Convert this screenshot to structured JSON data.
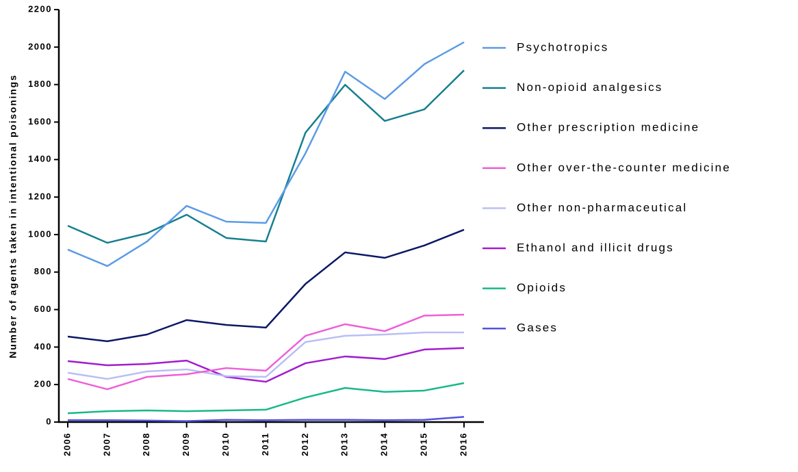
{
  "chart_data": {
    "type": "line",
    "y_label": "Number of agents taken in intentional poisonings",
    "categories": [
      "2006",
      "2007",
      "2008",
      "2009",
      "2010",
      "2011",
      "2012",
      "2013",
      "2014",
      "2015",
      "2016"
    ],
    "series": [
      {
        "name": "Psychotropics",
        "color": "#5b9be6",
        "values": [
          920,
          832,
          963,
          1153,
          1069,
          1062,
          1434,
          1869,
          1723,
          1909,
          2026
        ]
      },
      {
        "name": "Non-opioid analgesics",
        "color": "#167f8f",
        "values": [
          1047,
          956,
          1007,
          1106,
          982,
          963,
          1544,
          1799,
          1606,
          1668,
          1876
        ]
      },
      {
        "name": "Other prescription medicine",
        "color": "#0c1866",
        "values": [
          456,
          431,
          467,
          544,
          518,
          504,
          737,
          905,
          876,
          942,
          1026
        ]
      },
      {
        "name": "Other over-the-counter medicine",
        "color": "#ee5fd8",
        "values": [
          230,
          175,
          241,
          255,
          288,
          274,
          460,
          522,
          485,
          568,
          573
        ]
      },
      {
        "name": "Other non-pharmaceutical",
        "color": "#b9bff2",
        "values": [
          263,
          230,
          270,
          281,
          245,
          241,
          427,
          460,
          467,
          478,
          478
        ]
      },
      {
        "name": "Ethanol and illicit drugs",
        "color": "#a21cd0",
        "values": [
          325,
          303,
          310,
          328,
          241,
          215,
          314,
          350,
          336,
          387,
          395
        ]
      },
      {
        "name": "Opioids",
        "color": "#17b888",
        "values": [
          47,
          58,
          62,
          58,
          62,
          66,
          131,
          182,
          161,
          168,
          208
        ]
      },
      {
        "name": "Gases",
        "color": "#5252dc",
        "values": [
          10,
          10,
          8,
          5,
          12,
          10,
          12,
          12,
          10,
          12,
          28
        ]
      }
    ],
    "ylim": [
      0,
      2200
    ],
    "yticks": [
      0,
      200,
      400,
      600,
      800,
      1000,
      1200,
      1400,
      1600,
      1800,
      2000,
      2200
    ],
    "legend": "right"
  }
}
